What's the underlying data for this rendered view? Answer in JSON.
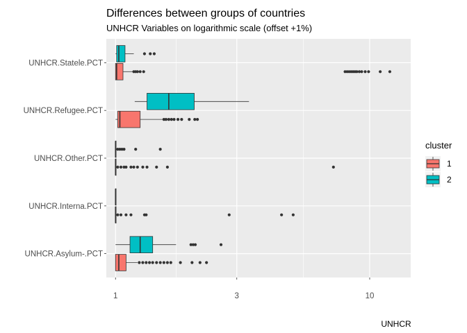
{
  "chart_data": {
    "type": "boxplot",
    "title": "Differences between groups of countries",
    "subtitle": "UNHCR Variables on logarithmic scale (offset +1%)",
    "xlabel": "UNHCR",
    "ylabel": "",
    "x_scale": "log",
    "xlim": [
      0.92,
      14.5
    ],
    "x_ticks": [
      {
        "value": 1,
        "label": "1"
      },
      {
        "value": 3,
        "label": "3"
      },
      {
        "value": 10,
        "label": "10"
      }
    ],
    "grid": true,
    "legend": {
      "title": "cluster",
      "position": "right",
      "entries": [
        {
          "label": "1",
          "color": "#F8766D"
        },
        {
          "label": "2",
          "color": "#00BFC4"
        }
      ]
    },
    "categories": [
      "UNHCR.Statele.PCT",
      "UNHCR.Refugee.PCT",
      "UNHCR.Other.PCT",
      "UNHCR.Interna.PCT",
      "UNHCR.Asylum-.PCT"
    ],
    "series": [
      {
        "name": "1",
        "color": "#F8766D",
        "boxes": [
          {
            "category": "UNHCR.Statele.PCT",
            "low": 1.0,
            "q1": 1.0,
            "median": 1.01,
            "q3": 1.07,
            "high": 1.17,
            "outliers": [
              1.18,
              1.2,
              1.22,
              1.25,
              1.29,
              8.0,
              8.15,
              8.3,
              8.45,
              8.6,
              8.75,
              8.9,
              9.1,
              9.3,
              9.6,
              9.9,
              11.0,
              12.0
            ]
          },
          {
            "category": "UNHCR.Refugee.PCT",
            "low": 1.0,
            "q1": 1.02,
            "median": 1.04,
            "q3": 1.25,
            "high": 1.53,
            "outliers": [
              1.55,
              1.58,
              1.62,
              1.66,
              1.7,
              1.76,
              1.82,
              1.95,
              2.05,
              2.1
            ]
          },
          {
            "category": "UNHCR.Other.PCT",
            "low": 1.0,
            "q1": 1.0,
            "median": 1.0,
            "q3": 1.0,
            "high": 1.0,
            "outliers": [
              1.02,
              1.05,
              1.08,
              1.1,
              1.15,
              1.18,
              1.22,
              1.28,
              1.33,
              1.45,
              1.6,
              7.2
            ]
          },
          {
            "category": "UNHCR.Interna.PCT",
            "low": 1.0,
            "q1": 1.0,
            "median": 1.0,
            "q3": 1.0,
            "high": 1.0,
            "outliers": [
              1.02,
              1.05,
              1.1,
              1.15,
              1.3,
              1.32,
              2.8,
              4.5,
              5.0
            ]
          },
          {
            "category": "UNHCR.Asylum-.PCT",
            "low": 1.0,
            "q1": 1.0,
            "median": 1.03,
            "q3": 1.1,
            "high": 1.22,
            "outliers": [
              1.24,
              1.28,
              1.32,
              1.36,
              1.4,
              1.45,
              1.5,
              1.55,
              1.6,
              1.65,
              1.8,
              2.0,
              2.15,
              2.28
            ]
          }
        ]
      },
      {
        "name": "2",
        "color": "#00BFC4",
        "boxes": [
          {
            "category": "UNHCR.Statele.PCT",
            "low": 1.0,
            "q1": 1.01,
            "median": 1.03,
            "q3": 1.09,
            "high": 1.18,
            "outliers": [
              1.3,
              1.37,
              1.42
            ]
          },
          {
            "category": "UNHCR.Refugee.PCT",
            "low": 1.19,
            "q1": 1.33,
            "median": 1.62,
            "q3": 2.04,
            "high": 3.35,
            "outliers": []
          },
          {
            "category": "UNHCR.Other.PCT",
            "low": 1.0,
            "q1": 1.0,
            "median": 1.0,
            "q3": 1.0,
            "high": 1.0,
            "outliers": [
              1.02,
              1.04,
              1.06,
              1.08,
              1.2,
              1.5
            ]
          },
          {
            "category": "UNHCR.Interna.PCT",
            "low": 1.0,
            "q1": 1.0,
            "median": 1.0,
            "q3": 1.0,
            "high": 1.0,
            "outliers": []
          },
          {
            "category": "UNHCR.Asylum-.PCT",
            "low": 1.0,
            "q1": 1.14,
            "median": 1.25,
            "q3": 1.4,
            "high": 1.73,
            "outliers": [
              1.98,
              2.02,
              2.06,
              2.6
            ]
          }
        ]
      }
    ]
  }
}
